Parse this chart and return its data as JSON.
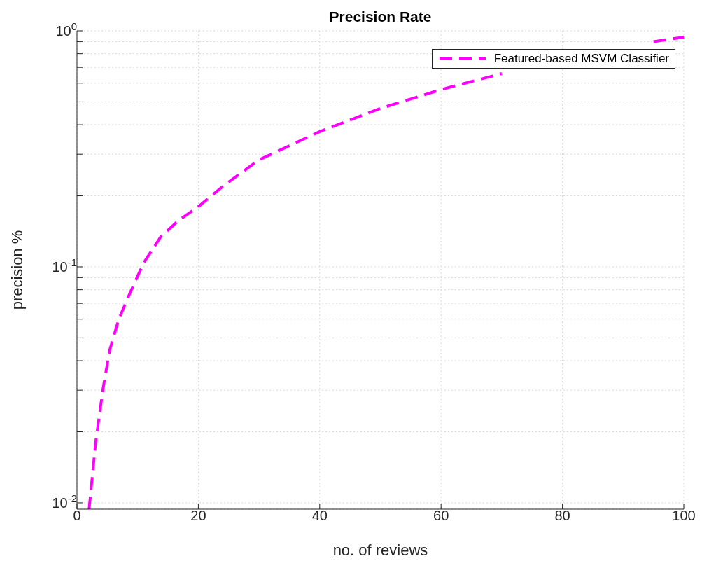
{
  "chart_data": {
    "type": "line",
    "title": "Precision Rate",
    "xlabel": "no. of reviews",
    "ylabel": "precision %",
    "x": [
      2,
      3.1,
      4.3,
      5.4,
      6.9,
      8.65,
      11,
      13.8,
      16.7,
      20,
      24.2,
      30,
      40,
      50,
      60,
      70,
      80,
      95,
      100
    ],
    "series": [
      {
        "name": "Featured-based MSVM Classifier",
        "color": "#ff00ff",
        "values": [
          0.0094,
          0.0182,
          0.0305,
          0.0444,
          0.06,
          0.0766,
          0.104,
          0.134,
          0.157,
          0.18,
          0.221,
          0.284,
          0.374,
          0.469,
          0.564,
          0.659,
          null,
          0.9,
          0.94
        ]
      }
    ],
    "xlim": [
      0,
      100
    ],
    "xticks": [
      0,
      20,
      40,
      60,
      80,
      100
    ],
    "ylim": [
      0.0094,
      1
    ],
    "yticks": [
      {
        "value": 0.01,
        "label": "10$^{-2}$"
      },
      {
        "value": 0.02,
        "label": null
      },
      {
        "value": 0.03,
        "label": null
      },
      {
        "value": 0.04,
        "label": null
      },
      {
        "value": 0.05,
        "label": null
      },
      {
        "value": 0.06,
        "label": null
      },
      {
        "value": 0.07,
        "label": null
      },
      {
        "value": 0.08,
        "label": null
      },
      {
        "value": 0.09,
        "label": null
      },
      {
        "value": 0.1,
        "label": "10$^{-1}$"
      },
      {
        "value": 0.2,
        "label": null
      },
      {
        "value": 0.3,
        "label": null
      },
      {
        "value": 0.4,
        "label": null
      },
      {
        "value": 0.5,
        "label": null
      },
      {
        "value": 0.6,
        "label": null
      },
      {
        "value": 0.7,
        "label": null
      },
      {
        "value": 0.8,
        "label": null
      },
      {
        "value": 0.9,
        "label": null
      },
      {
        "value": 1,
        "label": "10$^{0}$"
      }
    ],
    "log": "y",
    "grid": true,
    "legend": "top right",
    "line_style": "dashed",
    "marker": "none"
  }
}
